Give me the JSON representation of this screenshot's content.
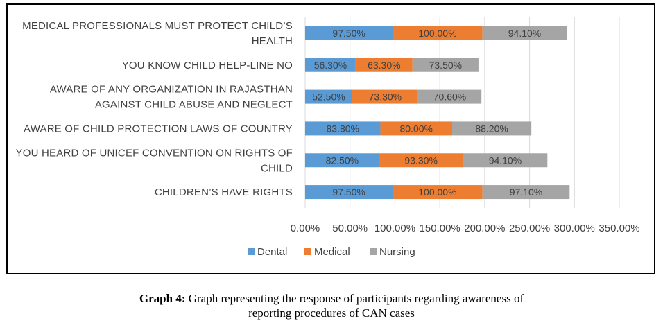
{
  "chart_data": {
    "type": "bar",
    "orientation": "horizontal",
    "stacked": true,
    "categories": [
      [
        "MEDICAL PROFESSIONALS MUST PROTECT CHILD’S",
        "HEALTH"
      ],
      [
        "YOU KNOW CHILD HELP-LINE NO"
      ],
      [
        "AWARE OF ANY ORGANIZATION IN RAJASTHAN",
        "AGAINST CHILD ABUSE AND NEGLECT"
      ],
      [
        "AWARE OF CHILD PROTECTION LAWS OF COUNTRY"
      ],
      [
        "YOU HEARD OF UNICEF CONVENTION ON RIGHTS OF",
        "CHILD"
      ],
      [
        "CHILDREN’S HAVE RIGHTS"
      ]
    ],
    "series": [
      {
        "name": "Dental",
        "color": "#5B9BD5",
        "values": [
          97.5,
          56.3,
          52.5,
          83.8,
          82.5,
          97.5
        ],
        "labels": [
          "97.50%",
          "56.30%",
          "52.50%",
          "83.80%",
          "82.50%",
          "97.50%"
        ]
      },
      {
        "name": "Medical",
        "color": "#ED7D31",
        "values": [
          100.0,
          63.3,
          73.3,
          80.0,
          93.3,
          100.0
        ],
        "labels": [
          "100.00%",
          "63.30%",
          "73.30%",
          "80.00%",
          "93.30%",
          "100.00%"
        ]
      },
      {
        "name": "Nursing",
        "color": "#A5A5A5",
        "values": [
          94.1,
          73.5,
          70.6,
          88.2,
          94.1,
          97.1
        ],
        "labels": [
          "94.10%",
          "73.50%",
          "70.60%",
          "88.20%",
          "94.10%",
          "97.10%"
        ]
      }
    ],
    "xlim": [
      0,
      350
    ],
    "xticks": [
      0,
      50,
      100,
      150,
      200,
      250,
      300,
      350
    ],
    "xtick_labels": [
      "0.00%",
      "50.00%",
      "100.00%",
      "150.00%",
      "200.00%",
      "250.00%",
      "300.00%",
      "350.00%"
    ],
    "grid": true,
    "legend": "bottom"
  },
  "caption": {
    "bold": "Graph 4:",
    "line1": " Graph representing the response of participants regarding awareness of",
    "line2": "reporting procedures of CAN cases"
  }
}
